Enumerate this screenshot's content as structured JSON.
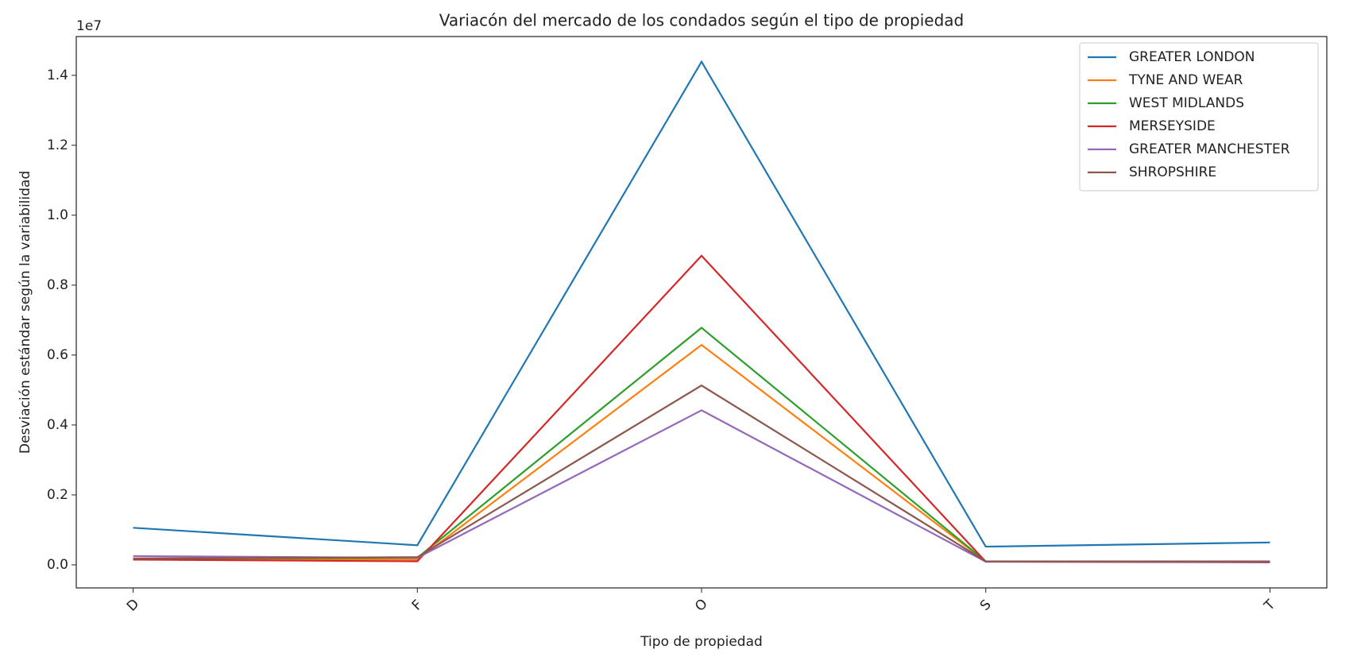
{
  "chart_data": {
    "type": "line",
    "title": "Variacón del mercado de los condados según el tipo de propiedad",
    "x_label": "Tipo de propiedad",
    "y_label": "Desviación estándar según la variabilidad",
    "y_offset_label": "1e7",
    "categories": [
      "D",
      "F",
      "O",
      "S",
      "T"
    ],
    "ylim": [
      -0.066,
      1.511
    ],
    "yticks": [
      {
        "value": 0,
        "label": "0.0"
      },
      0.2,
      0.4,
      0.6,
      0.8,
      {
        "value": 1,
        "label": "1.0"
      },
      1.2,
      1.4
    ],
    "legend": "upper right",
    "series": [
      {
        "name": "GREATER LONDON",
        "color": "#1f77b4",
        "values": [
          0.106,
          0.056,
          1.439,
          0.052,
          0.064
        ]
      },
      {
        "name": "TYNE AND WEAR",
        "color": "#ff7f0e",
        "values": [
          0.017,
          0.015,
          0.629,
          0.01,
          0.008
        ]
      },
      {
        "name": "WEST MIDLANDS",
        "color": "#2ca02c",
        "values": [
          0.018,
          0.02,
          0.678,
          0.01,
          0.008
        ]
      },
      {
        "name": "MERSEYSIDE",
        "color": "#d62728",
        "values": [
          0.015,
          0.01,
          0.884,
          0.009,
          0.007
        ]
      },
      {
        "name": "GREATER MANCHESTER",
        "color": "#9467bd",
        "values": [
          0.025,
          0.02,
          0.442,
          0.009,
          0.008
        ]
      },
      {
        "name": "SHROPSHIRE",
        "color": "#8c564b",
        "values": [
          0.018,
          0.022,
          0.513,
          0.01,
          0.01
        ]
      }
    ]
  }
}
